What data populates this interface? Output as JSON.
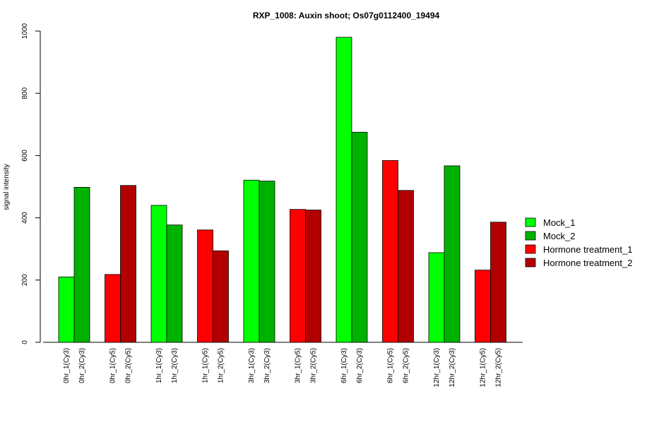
{
  "chart_data": {
    "type": "bar",
    "title": "RXP_1008: Auxin shoot; Os07g0112400_19494",
    "xlabel": "",
    "ylabel": "signal intensity",
    "ylim": [
      0,
      1000
    ],
    "yticks": [
      0,
      200,
      400,
      600,
      800,
      1000
    ],
    "grid": false,
    "legend_position": "right",
    "series": [
      {
        "name": "Mock_1",
        "color": "#00ff00"
      },
      {
        "name": "Mock_2",
        "color": "#00b200"
      },
      {
        "name": "Hormone treatment_1",
        "color": "#ff0000"
      },
      {
        "name": "Hormone treatment_2",
        "color": "#b20000"
      }
    ],
    "groups": [
      {
        "bars": [
          {
            "label": "0hr_1(Cy3)",
            "value": 210,
            "series": "Mock_1"
          },
          {
            "label": "0hr_2(Cy3)",
            "value": 498,
            "series": "Mock_2"
          }
        ]
      },
      {
        "bars": [
          {
            "label": "0hr_1(Cy5)",
            "value": 218,
            "series": "Hormone treatment_1"
          },
          {
            "label": "0hr_2(Cy5)",
            "value": 504,
            "series": "Hormone treatment_2"
          }
        ]
      },
      {
        "bars": [
          {
            "label": "1hr_1(Cy3)",
            "value": 440,
            "series": "Mock_1"
          },
          {
            "label": "1hr_2(Cy3)",
            "value": 377,
            "series": "Mock_2"
          }
        ]
      },
      {
        "bars": [
          {
            "label": "1hr_1(Cy5)",
            "value": 361,
            "series": "Hormone treatment_1"
          },
          {
            "label": "1hr_2(Cy5)",
            "value": 294,
            "series": "Hormone treatment_2"
          }
        ]
      },
      {
        "bars": [
          {
            "label": "3hr_1(Cy3)",
            "value": 521,
            "series": "Mock_1"
          },
          {
            "label": "3hr_2(Cy3)",
            "value": 518,
            "series": "Mock_2"
          }
        ]
      },
      {
        "bars": [
          {
            "label": "3hr_1(Cy5)",
            "value": 427,
            "series": "Hormone treatment_1"
          },
          {
            "label": "3hr_2(Cy5)",
            "value": 425,
            "series": "Hormone treatment_2"
          }
        ]
      },
      {
        "bars": [
          {
            "label": "6hr_1(Cy3)",
            "value": 980,
            "series": "Mock_1"
          },
          {
            "label": "6hr_2(Cy3)",
            "value": 675,
            "series": "Mock_2"
          }
        ]
      },
      {
        "bars": [
          {
            "label": "6hr_1(Cy5)",
            "value": 584,
            "series": "Hormone treatment_1"
          },
          {
            "label": "6hr_2(Cy5)",
            "value": 488,
            "series": "Hormone treatment_2"
          }
        ]
      },
      {
        "bars": [
          {
            "label": "12hr_1(Cy3)",
            "value": 288,
            "series": "Mock_1"
          },
          {
            "label": "12hr_2(Cy3)",
            "value": 567,
            "series": "Mock_2"
          }
        ]
      },
      {
        "bars": [
          {
            "label": "12hr_1(Cy5)",
            "value": 232,
            "series": "Hormone treatment_1"
          },
          {
            "label": "12hr_2(Cy5)",
            "value": 386,
            "series": "Hormone treatment_2"
          }
        ]
      }
    ]
  }
}
